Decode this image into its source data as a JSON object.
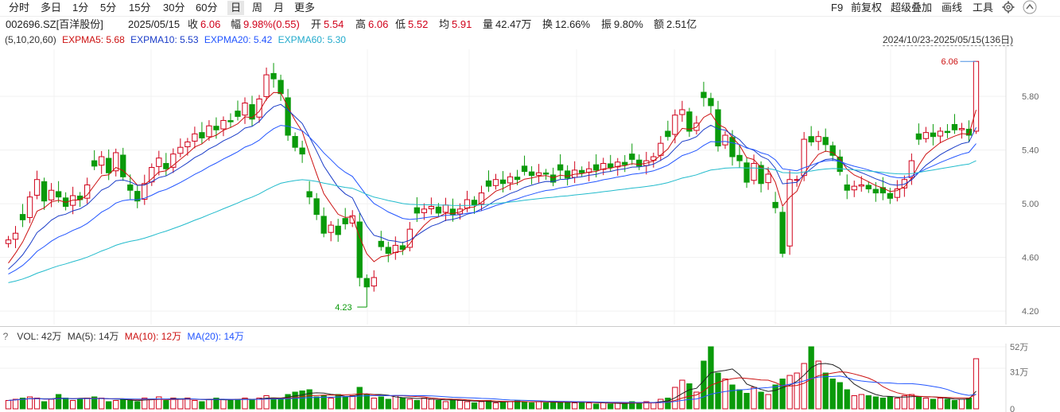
{
  "toolbar": {
    "tabs": [
      "分时",
      "多日",
      "1分",
      "5分",
      "15分",
      "30分",
      "60分",
      "日",
      "周",
      "月",
      "更多"
    ],
    "active_tab": "日",
    "right_items": [
      "F9",
      "前复权",
      "超级叠加",
      "画线",
      "工具"
    ],
    "icons": [
      "gear-icon",
      "up-arrow-icon"
    ]
  },
  "info": {
    "code": "002696.SZ[百洋股份]",
    "date": "2025/05/15",
    "close_label": "收",
    "close": "6.06",
    "change_label": "幅",
    "change": "9.98%(0.55)",
    "open_label": "开",
    "open": "5.54",
    "high_label": "高",
    "high": "6.06",
    "low_label": "低",
    "low": "5.52",
    "avg_label": "均",
    "avg": "5.91",
    "vol_label": "量",
    "vol": "42.47万",
    "turnover_label": "换",
    "turnover": "12.66%",
    "amp_label": "振",
    "amp": "9.80%",
    "amount_label": "额",
    "amount": "2.51亿"
  },
  "indicators": {
    "params": "(5,10,20,60)",
    "ma5": "EXPMA5: 5.68",
    "ma10": "EXPMA10: 5.53",
    "ma20": "EXPMA20: 5.42",
    "ma60": "EXPMA60: 5.30",
    "range": "2024/10/23-2025/05/15(136日)"
  },
  "volume": {
    "q": "?",
    "vol": "VOL: 42万",
    "ma5": "MA(5): 14万",
    "ma10": "MA(10): 12万",
    "ma20": "MA(20): 14万"
  },
  "colors": {
    "up": "#d0021b",
    "down": "#0a9a0a",
    "ma5": "#cc1111",
    "ma10": "#1a3cc8",
    "ma20": "#2255ff",
    "ma60": "#22bbcc"
  },
  "chart_data": {
    "type": "candlestick",
    "price_ticks": [
      "5.80",
      "5.40",
      "5.00",
      "4.60",
      "4.20"
    ],
    "volume_ticks": [
      "52万",
      "31万",
      "0"
    ],
    "ylim": [
      4.2,
      6.06
    ],
    "max_label": "6.06",
    "min_label": "4.23",
    "closes": [
      4.73,
      4.78,
      4.88,
      5.05,
      5.18,
      5.02,
      5.1,
      5.05,
      4.98,
      5.06,
      5.03,
      5.14,
      5.28,
      5.35,
      5.23,
      5.38,
      5.2,
      5.1,
      5.02,
      5.15,
      5.27,
      5.34,
      5.26,
      5.37,
      5.42,
      5.46,
      5.52,
      5.49,
      5.58,
      5.55,
      5.62,
      5.61,
      5.65,
      5.75,
      5.63,
      5.78,
      5.96,
      5.93,
      5.82,
      5.51,
      5.42,
      5.37,
      5.05,
      4.92,
      4.78,
      4.84,
      4.77,
      4.85,
      4.91,
      4.45,
      4.38,
      4.45,
      4.68,
      4.63,
      4.69,
      4.66,
      4.81,
      4.93,
      4.96,
      4.98,
      4.93,
      4.99,
      4.92,
      4.96,
      5.03,
      4.99,
      5.08,
      5.13,
      5.18,
      5.15,
      5.2,
      5.18,
      5.24,
      5.21,
      5.23,
      5.22,
      5.16,
      5.25,
      5.19,
      5.25,
      5.23,
      5.26,
      5.25,
      5.3,
      5.27,
      5.31,
      5.29,
      5.33,
      5.28,
      5.32,
      5.35,
      5.45,
      5.5,
      5.66,
      5.7,
      5.54,
      5.6,
      5.79,
      5.73,
      5.43,
      5.51,
      5.35,
      5.32,
      5.16,
      5.3,
      5.15,
      5.22,
      4.97,
      4.63,
      5.18,
      5.18,
      5.48,
      5.46,
      5.5,
      5.44,
      5.36,
      5.24,
      5.1,
      5.13,
      5.14,
      5.11,
      5.08,
      5.08,
      5.04,
      5.11,
      5.18,
      5.32,
      5.48,
      5.53,
      5.5,
      5.54,
      5.53,
      5.55,
      5.56,
      5.51,
      6.06
    ],
    "volumes": [
      7,
      8,
      9,
      10,
      9,
      6,
      8,
      12,
      9,
      7,
      8,
      9,
      10,
      9,
      6,
      7,
      8,
      7,
      6,
      9,
      8,
      10,
      7,
      9,
      8,
      9,
      7,
      6,
      8,
      9,
      8,
      7,
      8,
      9,
      8,
      9,
      11,
      9,
      8,
      12,
      14,
      15,
      16,
      10,
      11,
      9,
      12,
      10,
      11,
      18,
      12,
      9,
      10,
      8,
      11,
      9,
      8,
      7,
      9,
      8,
      7,
      6,
      8,
      7,
      6,
      5,
      6,
      7,
      5,
      6,
      6,
      7,
      6,
      5,
      6,
      5,
      6,
      5,
      6,
      5,
      6,
      5,
      4,
      5,
      4,
      5,
      4,
      6,
      5,
      6,
      5,
      8,
      9,
      18,
      24,
      21,
      14,
      40,
      52,
      30,
      25,
      20,
      16,
      13,
      18,
      14,
      12,
      20,
      25,
      28,
      30,
      38,
      52,
      40,
      30,
      25,
      22,
      16,
      11,
      12,
      11,
      10,
      9,
      10,
      9,
      11,
      12,
      10,
      9,
      8,
      9,
      8,
      7,
      8,
      9,
      42
    ]
  }
}
